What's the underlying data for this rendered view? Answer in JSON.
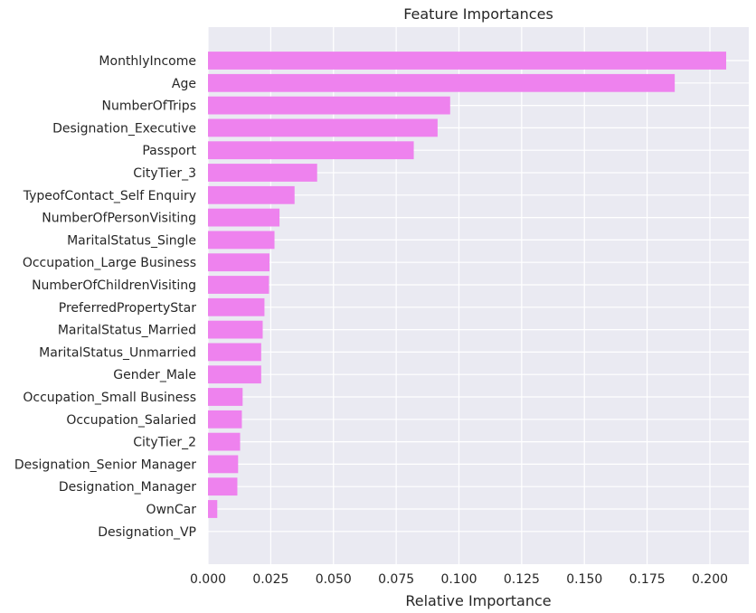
{
  "chart_data": {
    "type": "bar",
    "orientation": "horizontal",
    "title": "Feature Importances",
    "xlabel": "Relative Importance",
    "ylabel": "",
    "xlim": [
      0,
      0.2155
    ],
    "xticks": [
      "0.000",
      "0.025",
      "0.050",
      "0.075",
      "0.100",
      "0.125",
      "0.150",
      "0.175",
      "0.200"
    ],
    "grid": true,
    "bar_color": "#ee82ee",
    "background_color": "#eaeaf2",
    "categories": [
      "MonthlyIncome",
      "Age",
      "NumberOfTrips",
      "Designation_Executive",
      "Passport",
      "CityTier_3",
      "TypeofContact_Self Enquiry",
      "NumberOfPersonVisiting",
      "MaritalStatus_Single",
      "Occupation_Large Business",
      "NumberOfChildrenVisiting",
      "PreferredPropertyStar",
      "MaritalStatus_Married",
      "MaritalStatus_Unmarried",
      "Gender_Male",
      "Occupation_Small Business",
      "Occupation_Salaried",
      "CityTier_2",
      "Designation_Senior Manager",
      "Designation_Manager",
      "OwnCar",
      "Designation_VP"
    ],
    "values": [
      0.2065,
      0.186,
      0.0965,
      0.0915,
      0.082,
      0.0435,
      0.0345,
      0.0285,
      0.0265,
      0.0245,
      0.0243,
      0.0225,
      0.0218,
      0.0212,
      0.0212,
      0.0138,
      0.0135,
      0.0128,
      0.012,
      0.0117,
      0.0037,
      0.0
    ]
  }
}
